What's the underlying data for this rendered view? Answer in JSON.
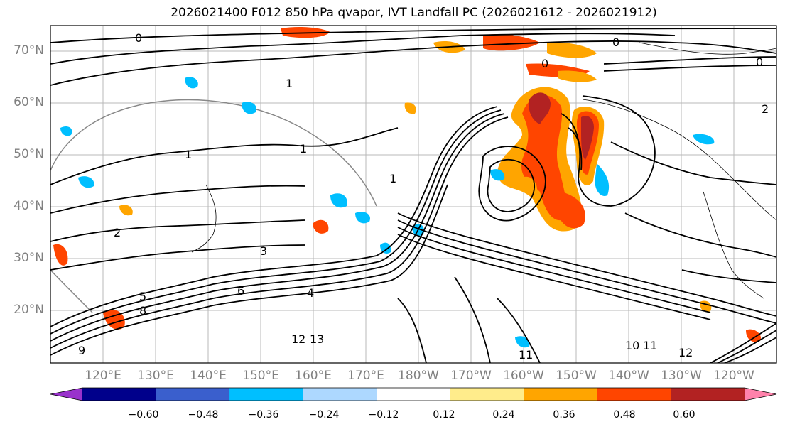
{
  "title": "2026021400 F012 850 hPa qvapor, IVT Landfall PC (2026021612 - 2026021912)",
  "map": {
    "lat_labels": [
      "70°N",
      "60°N",
      "50°N",
      "40°N",
      "30°N",
      "20°N"
    ],
    "lon_labels": [
      "120°E",
      "130°E",
      "140°E",
      "150°E",
      "160°E",
      "170°E",
      "180°W",
      "170°W",
      "160°W",
      "150°W",
      "140°W",
      "130°W",
      "120°W"
    ],
    "contour_labels": [
      "0",
      "0",
      "0",
      "0",
      "1",
      "1",
      "1",
      "1",
      "2",
      "2",
      "3",
      "4",
      "5",
      "6",
      "8",
      "9",
      "10",
      "11",
      "11",
      "12",
      "12",
      "13"
    ]
  },
  "colorbar": {
    "ticks": [
      "−0.60",
      "−0.48",
      "−0.36",
      "−0.24",
      "−0.12",
      "0.12",
      "0.24",
      "0.36",
      "0.48",
      "0.60"
    ],
    "colors": [
      "#9932cc",
      "#00008b",
      "#3a5fcd",
      "#00bfff",
      "#add8ff",
      "#ffffff",
      "#ffec8b",
      "#ffa500",
      "#ff4500",
      "#b22222",
      "#ff82ab"
    ]
  }
}
